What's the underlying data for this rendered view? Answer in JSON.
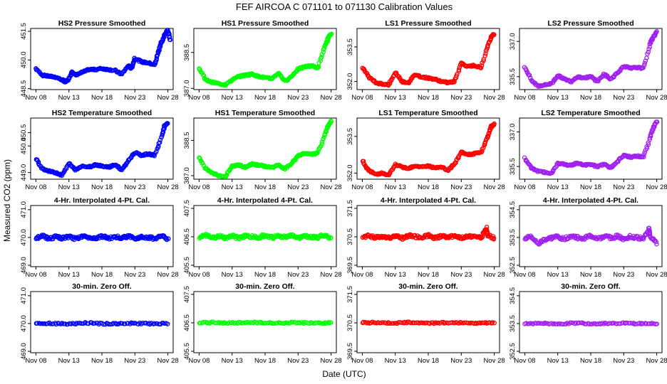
{
  "figure": {
    "title": "FEF   AIRCOA C   071101 to 071130   Calibration Values",
    "xlabel": "Date (UTC)",
    "ylabel": "Measured CO2 (ppm)"
  },
  "colors": {
    "HS2": "#0000ff",
    "HS1": "#00ff00",
    "LS1": "#ff0000",
    "LS2": "#a020f0"
  },
  "chart_data": [
    {
      "type": "scatter",
      "title": "HS2 Pressure Smoothed",
      "series": "HS2",
      "row": "pressure",
      "yticks": [
        "448.5",
        "450.0",
        "451.5"
      ],
      "ytick_values": [
        448.5,
        450.0,
        451.5
      ],
      "ylim": [
        448.45,
        451.65
      ],
      "xticks": [
        "Nov 08",
        "Nov 13",
        "Nov 18",
        "Nov 23",
        "Nov 28"
      ],
      "xtick_days": [
        8,
        13,
        18,
        23,
        28
      ],
      "xlim": [
        7.2,
        28.8
      ],
      "x": [
        8,
        9,
        10,
        11,
        12,
        12.5,
        13,
        13.5,
        14,
        15,
        16,
        17,
        18,
        19,
        20,
        21,
        22,
        22.5,
        23,
        24,
        25,
        26,
        26.5,
        27,
        27.5,
        28,
        28.4
      ],
      "y": [
        449.55,
        449.2,
        449.15,
        449.1,
        448.95,
        448.85,
        449.0,
        449.4,
        449.2,
        449.35,
        449.5,
        449.5,
        449.55,
        449.5,
        449.45,
        449.25,
        449.7,
        449.55,
        450.1,
        449.9,
        449.85,
        449.75,
        450.35,
        450.9,
        451.3,
        451.55,
        451.05
      ]
    },
    {
      "type": "scatter",
      "title": "HS1 Pressure Smoothed",
      "series": "HS1",
      "row": "pressure",
      "yticks": [
        "387.0",
        "388.5"
      ],
      "ytick_values": [
        387.0,
        388.5
      ],
      "ylim": [
        386.95,
        389.5
      ],
      "xticks": [
        "Nov 08",
        "Nov 13",
        "Nov 18",
        "Nov 23",
        "Nov 28"
      ],
      "xtick_days": [
        8,
        13,
        18,
        23,
        28
      ],
      "xlim": [
        7.2,
        28.8
      ],
      "x": [
        8,
        9,
        10,
        11,
        12,
        13,
        14,
        15,
        16,
        17,
        18,
        19,
        20,
        21,
        22,
        23,
        24,
        25,
        26,
        27,
        27.5,
        28
      ],
      "y": [
        387.85,
        387.35,
        387.25,
        387.2,
        387.15,
        387.35,
        387.5,
        387.55,
        387.6,
        387.5,
        387.45,
        387.4,
        387.65,
        387.3,
        387.5,
        387.8,
        387.9,
        387.95,
        387.85,
        388.7,
        389.05,
        389.3
      ]
    },
    {
      "type": "scatter",
      "title": "LS1 Pressure Smoothed",
      "series": "LS1",
      "row": "pressure",
      "yticks": [
        "352.0",
        "353.5"
      ],
      "ytick_values": [
        352.0,
        353.5
      ],
      "ylim": [
        351.65,
        354.3
      ],
      "xticks": [
        "Nov 08",
        "Nov 13",
        "Nov 18",
        "Nov 23",
        "Nov 28"
      ],
      "xtick_days": [
        8,
        13,
        18,
        23,
        28
      ],
      "xlim": [
        7.2,
        28.8
      ],
      "x": [
        8,
        9,
        10,
        11,
        12,
        13,
        14,
        15,
        16,
        17,
        18,
        19,
        20,
        21,
        22,
        23,
        24,
        25,
        26,
        27,
        27.5,
        28
      ],
      "y": [
        352.6,
        352.2,
        351.95,
        351.9,
        351.85,
        352.4,
        352.0,
        351.95,
        352.3,
        352.2,
        352.15,
        352.1,
        352.0,
        351.95,
        352.0,
        352.8,
        352.65,
        352.7,
        352.6,
        353.5,
        353.95,
        354.05
      ]
    },
    {
      "type": "scatter",
      "title": "LS2 Pressure Smoothed",
      "series": "LS2",
      "row": "pressure",
      "yticks": [
        "335.5",
        "337.0"
      ],
      "ytick_values": [
        335.5,
        337.0
      ],
      "ylim": [
        334.95,
        337.55
      ],
      "xticks": [
        "Nov 08",
        "Nov 13",
        "Nov 18",
        "Nov 23",
        "Nov 28"
      ],
      "xtick_days": [
        8,
        13,
        18,
        23,
        28
      ],
      "xlim": [
        7.2,
        28.8
      ],
      "x": [
        8,
        9,
        10,
        11,
        12,
        13,
        14,
        15,
        16,
        17,
        18,
        19,
        20,
        21,
        22,
        23,
        24,
        25,
        26,
        27,
        27.5,
        28
      ],
      "y": [
        335.9,
        335.35,
        335.1,
        335.15,
        335.2,
        335.55,
        335.4,
        335.3,
        335.5,
        335.45,
        335.5,
        335.3,
        335.6,
        335.4,
        335.65,
        335.95,
        335.85,
        335.9,
        335.85,
        336.9,
        337.2,
        337.4
      ]
    },
    {
      "type": "scatter",
      "title": "HS2 Temperature Smoothed",
      "series": "HS2",
      "row": "temperature",
      "yticks": [
        "449.0",
        "450.0",
        "450.5"
      ],
      "ytick_values": [
        449.0,
        450.0,
        450.5
      ],
      "ylim": [
        448.75,
        451.05
      ],
      "xticks": [
        "Nov 08",
        "Nov 13",
        "Nov 18",
        "Nov 23",
        "Nov 28"
      ],
      "xtick_days": [
        8,
        13,
        18,
        23,
        28
      ],
      "xlim": [
        7.2,
        28.8
      ],
      "x": [
        8,
        9,
        10,
        11,
        12,
        13,
        14,
        15,
        16,
        17,
        18,
        19,
        20,
        21,
        22,
        23,
        24,
        25,
        26,
        27,
        27.5,
        28
      ],
      "y": [
        449.5,
        449.15,
        449.05,
        449.0,
        448.9,
        449.35,
        449.1,
        449.25,
        449.2,
        449.3,
        449.25,
        449.2,
        449.3,
        449.1,
        449.45,
        449.75,
        449.65,
        449.7,
        449.65,
        450.3,
        450.75,
        450.85
      ]
    },
    {
      "type": "scatter",
      "title": "HS1 Temperature Smoothed",
      "series": "HS1",
      "row": "temperature",
      "yticks": [
        "387.0",
        "388.5"
      ],
      "ytick_values": [
        387.0,
        388.5
      ],
      "ylim": [
        386.85,
        389.45
      ],
      "xticks": [
        "Nov 08",
        "Nov 13",
        "Nov 18",
        "Nov 23",
        "Nov 28"
      ],
      "xtick_days": [
        8,
        13,
        18,
        23,
        28
      ],
      "xlim": [
        7.2,
        28.8
      ],
      "x": [
        8,
        9,
        10,
        11,
        12,
        13,
        14,
        15,
        16,
        17,
        18,
        19,
        20,
        21,
        22,
        23,
        24,
        25,
        26,
        27,
        27.5,
        28
      ],
      "y": [
        387.75,
        387.3,
        387.1,
        387.0,
        386.95,
        387.4,
        387.45,
        387.35,
        387.5,
        387.45,
        387.4,
        387.35,
        387.45,
        387.3,
        387.5,
        387.85,
        387.95,
        387.9,
        387.95,
        388.7,
        389.1,
        389.3
      ]
    },
    {
      "type": "scatter",
      "title": "LS1 Temperature Smoothed",
      "series": "LS1",
      "row": "temperature",
      "yticks": [
        "352.0",
        "353.5"
      ],
      "ytick_values": [
        352.0,
        353.5
      ],
      "ylim": [
        351.75,
        354.25
      ],
      "xticks": [
        "Nov 08",
        "Nov 13",
        "Nov 18",
        "Nov 23",
        "Nov 28"
      ],
      "xtick_days": [
        8,
        13,
        18,
        23,
        28
      ],
      "xlim": [
        7.2,
        28.8
      ],
      "x": [
        8,
        9,
        10,
        11,
        12,
        13,
        14,
        15,
        16,
        17,
        18,
        19,
        20,
        21,
        22,
        23,
        24,
        25,
        26,
        27,
        27.5,
        28
      ],
      "y": [
        352.5,
        352.1,
        351.95,
        352.0,
        351.9,
        352.35,
        352.25,
        352.2,
        352.3,
        352.25,
        352.3,
        352.2,
        352.25,
        352.1,
        352.4,
        352.85,
        352.75,
        352.8,
        352.85,
        353.45,
        353.9,
        354.0
      ]
    },
    {
      "type": "scatter",
      "title": "LS2 Temperature Smoothed",
      "series": "LS2",
      "row": "temperature",
      "yticks": [
        "335.5",
        "337.0"
      ],
      "ytick_values": [
        335.5,
        337.0
      ],
      "ylim": [
        334.95,
        337.6
      ],
      "xticks": [
        "Nov 08",
        "Nov 13",
        "Nov 18",
        "Nov 23",
        "Nov 28"
      ],
      "xtick_days": [
        8,
        13,
        18,
        23,
        28
      ],
      "xlim": [
        7.2,
        28.8
      ],
      "x": [
        8,
        9,
        10,
        11,
        12,
        13,
        14,
        15,
        16,
        17,
        18,
        19,
        20,
        21,
        22,
        23,
        24,
        25,
        26,
        27,
        27.5,
        28
      ],
      "y": [
        335.85,
        335.45,
        335.3,
        335.25,
        335.2,
        335.65,
        335.6,
        335.55,
        335.65,
        335.55,
        335.6,
        335.5,
        335.6,
        335.45,
        335.7,
        336.0,
        335.9,
        335.95,
        335.9,
        336.75,
        337.2,
        337.45
      ]
    },
    {
      "type": "scatter",
      "title": "4-Hr. Interpolated 4-Pt. Cal.",
      "series": "HS2",
      "row": "interp",
      "yticks": [
        "469.0",
        "470.0",
        "471.0"
      ],
      "ytick_values": [
        469.0,
        470.0,
        471.0
      ],
      "ylim": [
        468.95,
        471.15
      ],
      "xticks": [
        "Nov 08",
        "Nov 13",
        "Nov 18",
        "Nov 23",
        "Nov 28"
      ],
      "xtick_days": [
        8,
        13,
        18,
        23,
        28
      ],
      "xlim": [
        7.2,
        28.8
      ],
      "mean": 470.0,
      "spread": 0.1,
      "x": [
        8,
        9,
        10,
        11,
        12,
        13,
        14,
        15,
        16,
        17,
        18,
        19,
        20,
        21,
        22,
        23,
        24,
        25,
        26,
        27,
        28
      ],
      "y": [
        469.98,
        470.05,
        469.96,
        470.02,
        469.97,
        470.03,
        469.95,
        470.04,
        470.0,
        469.98,
        470.05,
        469.97,
        470.02,
        469.99,
        470.04,
        469.96,
        470.03,
        470.0,
        469.97,
        470.06,
        469.95
      ]
    },
    {
      "type": "scatter",
      "title": "4-Hr. Interpolated 4-Pt. Cal.",
      "series": "HS1",
      "row": "interp",
      "yticks": [
        "405.5",
        "406.5",
        "407.5"
      ],
      "ytick_values": [
        405.5,
        406.5,
        407.5
      ],
      "ylim": [
        405.45,
        407.6
      ],
      "xticks": [
        "Nov 08",
        "Nov 13",
        "Nov 18",
        "Nov 23",
        "Nov 28"
      ],
      "xtick_days": [
        8,
        13,
        18,
        23,
        28
      ],
      "xlim": [
        7.2,
        28.8
      ],
      "mean": 406.5,
      "spread": 0.1,
      "x": [
        8,
        9,
        10,
        11,
        12,
        13,
        14,
        15,
        16,
        17,
        18,
        19,
        20,
        21,
        22,
        23,
        24,
        25,
        26,
        27,
        28
      ],
      "y": [
        406.48,
        406.55,
        406.46,
        406.52,
        406.47,
        406.53,
        406.45,
        406.54,
        406.5,
        406.48,
        406.55,
        406.47,
        406.52,
        406.49,
        406.54,
        406.46,
        406.53,
        406.5,
        406.47,
        406.56,
        406.45
      ]
    },
    {
      "type": "scatter",
      "title": "4-Hr. Interpolated 4-Pt. Cal.",
      "series": "LS1",
      "row": "interp",
      "yticks": [
        "369.5",
        "370.5",
        "371.5"
      ],
      "ytick_values": [
        369.5,
        370.5,
        371.5
      ],
      "ylim": [
        369.45,
        371.6
      ],
      "xticks": [
        "Nov 08",
        "Nov 13",
        "Nov 18",
        "Nov 23",
        "Nov 28"
      ],
      "xtick_days": [
        8,
        13,
        18,
        23,
        28
      ],
      "xlim": [
        7.2,
        28.8
      ],
      "mean": 370.5,
      "spread": 0.1,
      "x": [
        8,
        9,
        10,
        11,
        12,
        13,
        14,
        15,
        16,
        17,
        18,
        19,
        20,
        21,
        22,
        23,
        24,
        25,
        26,
        26.8,
        27,
        28
      ],
      "y": [
        370.48,
        370.55,
        370.46,
        370.52,
        370.47,
        370.53,
        370.45,
        370.54,
        370.5,
        370.48,
        370.55,
        370.47,
        370.52,
        370.49,
        370.54,
        370.46,
        370.53,
        370.5,
        370.47,
        370.82,
        370.56,
        370.45
      ]
    },
    {
      "type": "scatter",
      "title": "4-Hr. Interpolated 4-Pt. Cal.",
      "series": "LS2",
      "row": "interp",
      "yticks": [
        "352.5",
        "353.5",
        "354.5"
      ],
      "ytick_values": [
        352.5,
        353.5,
        354.5
      ],
      "ylim": [
        352.45,
        354.65
      ],
      "xticks": [
        "Nov 08",
        "Nov 13",
        "Nov 18",
        "Nov 23",
        "Nov 28"
      ],
      "xtick_days": [
        8,
        13,
        18,
        23,
        28
      ],
      "xlim": [
        7.2,
        28.8
      ],
      "mean": 353.5,
      "spread": 0.12,
      "x": [
        8,
        9,
        10,
        11,
        12,
        13,
        14,
        15,
        16,
        17,
        18,
        19,
        20,
        21,
        22,
        23,
        24,
        25,
        26,
        26.8,
        27,
        28
      ],
      "y": [
        353.48,
        353.55,
        353.25,
        353.42,
        353.47,
        353.53,
        353.45,
        353.54,
        353.5,
        353.48,
        353.55,
        353.47,
        353.52,
        353.49,
        353.54,
        353.46,
        353.53,
        353.5,
        353.47,
        353.82,
        353.56,
        353.3
      ]
    },
    {
      "type": "scatter",
      "title": "30-min. Zero Off.",
      "series": "HS2",
      "row": "zero",
      "yticks": [
        "469.0",
        "470.0",
        "471.0"
      ],
      "ytick_values": [
        469.0,
        470.0,
        471.0
      ],
      "ylim": [
        468.95,
        471.15
      ],
      "xticks": [
        "Nov 08",
        "Nov 13",
        "Nov 18",
        "Nov 23",
        "Nov 28"
      ],
      "xtick_days": [
        8,
        13,
        18,
        23,
        28
      ],
      "xlim": [
        7.2,
        28.8
      ],
      "mean": 470.0,
      "spread": 0.05,
      "x": [
        8,
        10,
        12,
        14,
        16,
        18,
        20,
        22,
        24,
        26,
        28
      ],
      "y": [
        470.0,
        470.01,
        469.99,
        470.0,
        470.02,
        469.99,
        470.0,
        470.01,
        470.0,
        469.99,
        470.0
      ]
    },
    {
      "type": "scatter",
      "title": "30-min. Zero Off.",
      "series": "HS1",
      "row": "zero",
      "yticks": [
        "405.5",
        "406.5",
        "407.5"
      ],
      "ytick_values": [
        405.5,
        406.5,
        407.5
      ],
      "ylim": [
        405.45,
        407.6
      ],
      "xticks": [
        "Nov 08",
        "Nov 13",
        "Nov 18",
        "Nov 23",
        "Nov 28"
      ],
      "xtick_days": [
        8,
        13,
        18,
        23,
        28
      ],
      "xlim": [
        7.2,
        28.8
      ],
      "mean": 406.5,
      "spread": 0.05,
      "x": [
        8,
        10,
        12,
        14,
        16,
        18,
        20,
        22,
        24,
        26,
        28
      ],
      "y": [
        406.5,
        406.51,
        406.49,
        406.5,
        406.52,
        406.49,
        406.5,
        406.51,
        406.5,
        406.49,
        406.5
      ]
    },
    {
      "type": "scatter",
      "title": "30-min. Zero Off.",
      "series": "LS1",
      "row": "zero",
      "yticks": [
        "369.5",
        "370.5",
        "371.5"
      ],
      "ytick_values": [
        369.5,
        370.5,
        371.5
      ],
      "ylim": [
        369.45,
        371.6
      ],
      "xticks": [
        "Nov 08",
        "Nov 13",
        "Nov 18",
        "Nov 23",
        "Nov 28"
      ],
      "xtick_days": [
        8,
        13,
        18,
        23,
        28
      ],
      "xlim": [
        7.2,
        28.8
      ],
      "mean": 370.5,
      "spread": 0.05,
      "x": [
        8,
        10,
        12,
        14,
        16,
        18,
        20,
        22,
        24,
        26,
        28
      ],
      "y": [
        370.5,
        370.51,
        370.49,
        370.5,
        370.52,
        370.49,
        370.5,
        370.51,
        370.5,
        370.49,
        370.5
      ]
    },
    {
      "type": "scatter",
      "title": "30-min. Zero Off.",
      "series": "LS2",
      "row": "zero",
      "yticks": [
        "352.5",
        "353.5",
        "354.5"
      ],
      "ytick_values": [
        352.5,
        353.5,
        354.5
      ],
      "ylim": [
        352.45,
        354.65
      ],
      "xticks": [
        "Nov 08",
        "Nov 13",
        "Nov 18",
        "Nov 23",
        "Nov 28"
      ],
      "xtick_days": [
        8,
        13,
        18,
        23,
        28
      ],
      "xlim": [
        7.2,
        28.8
      ],
      "mean": 353.5,
      "spread": 0.05,
      "x": [
        8,
        10,
        12,
        14,
        16,
        18,
        20,
        22,
        24,
        26,
        28
      ],
      "y": [
        353.5,
        353.51,
        353.49,
        353.5,
        353.52,
        353.49,
        353.5,
        353.51,
        353.5,
        353.49,
        353.5
      ]
    }
  ]
}
